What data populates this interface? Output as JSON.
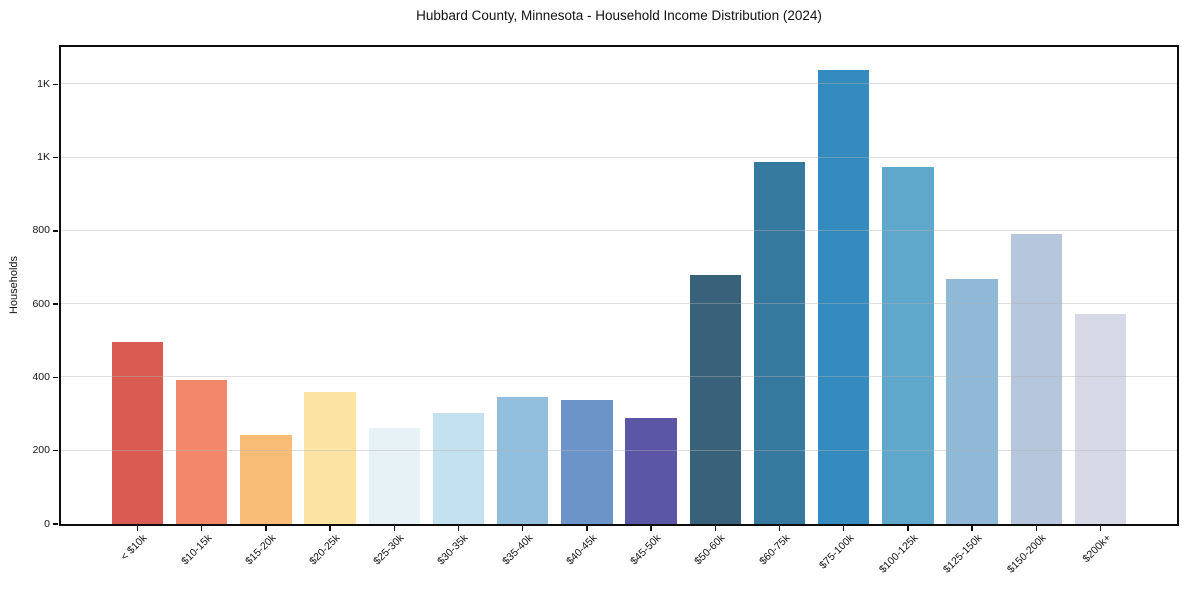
{
  "chart_data": {
    "type": "bar",
    "title": "Hubbard County, Minnesota - Household Income Distribution (2024)",
    "xlabel": "",
    "ylabel": "Households",
    "categories": [
      "< $10k",
      "$10-15k",
      "$15-20k",
      "$20-25k",
      "$25-30k",
      "$30-35k",
      "$35-40k",
      "$40-45k",
      "$45-50k",
      "$50-60k",
      "$60-75k",
      "$75-100k",
      "$100-125k",
      "$125-150k",
      "$150-200k",
      "$200k+"
    ],
    "values": [
      497,
      392,
      243,
      360,
      263,
      302,
      347,
      338,
      290,
      681,
      987,
      1240,
      974,
      670,
      791,
      572
    ],
    "bar_colors": [
      "#d95b52",
      "#f2876b",
      "#f9bd77",
      "#fce3a3",
      "#e7f2f7",
      "#c3e1ee",
      "#92bedd",
      "#6d94c8",
      "#5b57a6",
      "#39617a",
      "#36799f",
      "#348bc0",
      "#5fa7cb",
      "#90b9d7",
      "#b6c7dd",
      "#d7d9e6"
    ],
    "ylim": [
      0,
      1302
    ],
    "yticks": {
      "values": [
        0,
        200,
        400,
        600,
        800,
        1000,
        1200
      ],
      "labels": [
        "0",
        "200",
        "400",
        "600",
        "800",
        "1K",
        "1K"
      ]
    },
    "grid": "horizontal, drawn over bars, light gray",
    "legend": "none",
    "x_tick_rotation": 45
  }
}
